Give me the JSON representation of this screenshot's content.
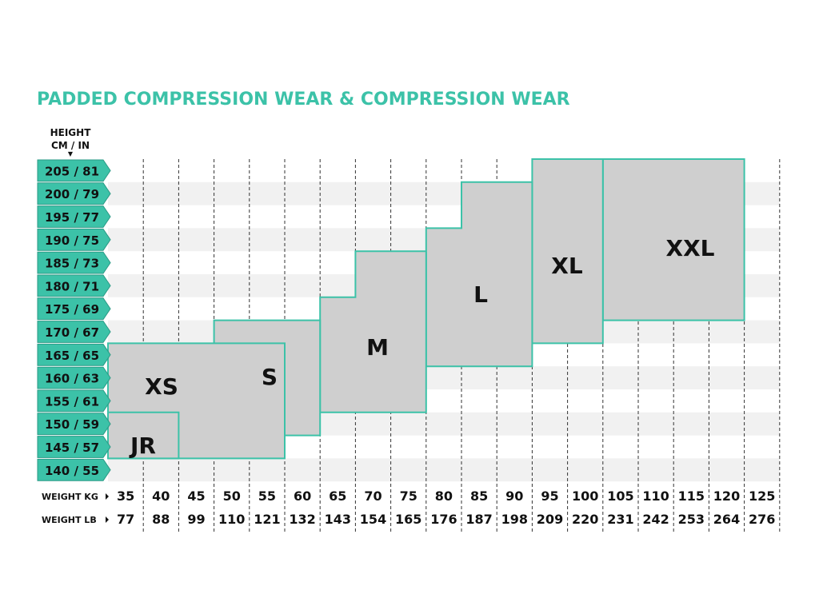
{
  "title": "PADDED COMPRESSION WEAR & COMPRESSION WEAR",
  "height_header": {
    "line1": "HEIGHT",
    "line2": "CM / IN"
  },
  "colors": {
    "accent": "#3cc2a8",
    "box_fill": "#cfcfcf",
    "stripe": "#f1f1f1",
    "text": "#111111"
  },
  "chart_data": {
    "type": "table",
    "title": "PADDED COMPRESSION WEAR & COMPRESSION WEAR",
    "y_axis": {
      "label": "HEIGHT CM / IN",
      "ticks": [
        "205 / 81",
        "200 / 79",
        "195 / 77",
        "190 / 75",
        "185 / 73",
        "180 / 71",
        "175 / 69",
        "170 / 67",
        "165 / 65",
        "160 / 63",
        "155 / 61",
        "150 / 59",
        "145 / 57",
        "140 / 55"
      ]
    },
    "x_axis": {
      "kg_label": "WEIGHT KG",
      "lb_label": "WEIGHT LB",
      "kg": [
        35,
        40,
        45,
        50,
        55,
        60,
        65,
        70,
        75,
        80,
        85,
        90,
        95,
        100,
        105,
        110,
        115,
        120,
        125
      ],
      "lb": [
        77,
        88,
        99,
        110,
        121,
        132,
        143,
        154,
        165,
        176,
        187,
        198,
        209,
        220,
        231,
        242,
        253,
        264,
        276
      ]
    },
    "sizes": [
      {
        "label": "JR",
        "weight_kg": [
          35,
          45
        ],
        "height_cm": [
          140,
          150
        ]
      },
      {
        "label": "XS",
        "weight_kg": [
          35,
          60
        ],
        "height_cm": [
          140,
          165
        ]
      },
      {
        "label": "S",
        "weight_kg": [
          50,
          65
        ],
        "height_cm": [
          145,
          170
        ]
      },
      {
        "label": "M",
        "weight_kg": [
          65,
          80
        ],
        "height_cm": [
          150,
          175
        ]
      },
      {
        "label": "L",
        "weight_kg": [
          80,
          95
        ],
        "height_cm": [
          160,
          190
        ]
      },
      {
        "label": "XL",
        "weight_kg": [
          95,
          105
        ],
        "height_cm": [
          165,
          205
        ]
      },
      {
        "label": "XXL",
        "weight_kg": [
          105,
          125
        ],
        "height_cm": [
          170,
          205
        ]
      }
    ],
    "size_steps": [
      {
        "label": "M",
        "weight_kg": [
          70,
          80
        ],
        "height_cm": [
          175,
          185
        ]
      },
      {
        "label": "L",
        "weight_kg": [
          85,
          95
        ],
        "height_cm": [
          190,
          200
        ]
      }
    ]
  }
}
